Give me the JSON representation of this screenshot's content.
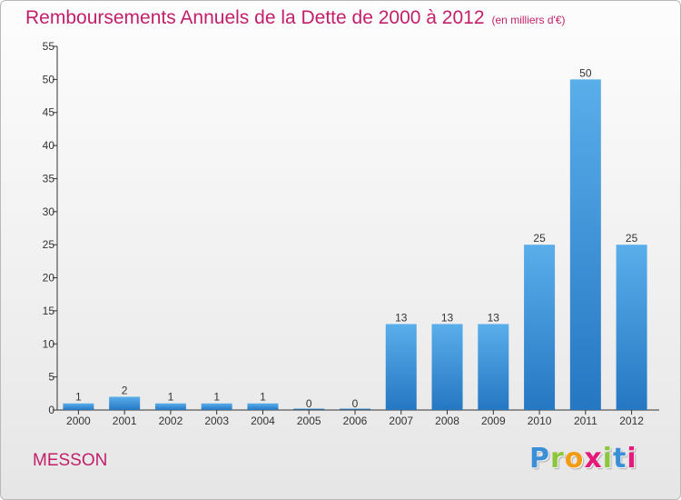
{
  "chart_data": {
    "type": "bar",
    "title": "Remboursements Annuels de la Dette de 2000 à 2012",
    "unit_note": "(en milliers d'€)",
    "categories": [
      "2000",
      "2001",
      "2002",
      "2003",
      "2004",
      "2005",
      "2006",
      "2007",
      "2008",
      "2009",
      "2010",
      "2011",
      "2012"
    ],
    "values": [
      1,
      2,
      1,
      1,
      1,
      0,
      0,
      13,
      13,
      13,
      25,
      50,
      25
    ],
    "data_labels": [
      "1",
      "2",
      "1",
      "1",
      "1",
      "0",
      "0",
      "13",
      "13",
      "13",
      "25",
      "50",
      "25"
    ],
    "ylim": [
      0,
      55
    ],
    "yticks": [
      0,
      5,
      10,
      15,
      20,
      25,
      30,
      35,
      40,
      45,
      50,
      55
    ],
    "grid": false,
    "bar_color": "#3d95dd",
    "bar_color_light": "#5aaeea",
    "bar_color_dark": "#2577c2"
  },
  "commune_name": "MESSON",
  "logo": {
    "letters": [
      "P",
      "r",
      "o",
      "x",
      "i",
      "t",
      "i"
    ],
    "colors": [
      "#3a8fd6",
      "#8cc63f",
      "#f39c12",
      "#e5197a",
      "#8cc63f",
      "#3a8fd6",
      "#e5197a"
    ]
  },
  "colors": {
    "title": "#c21f6b",
    "axis": "#333333"
  }
}
